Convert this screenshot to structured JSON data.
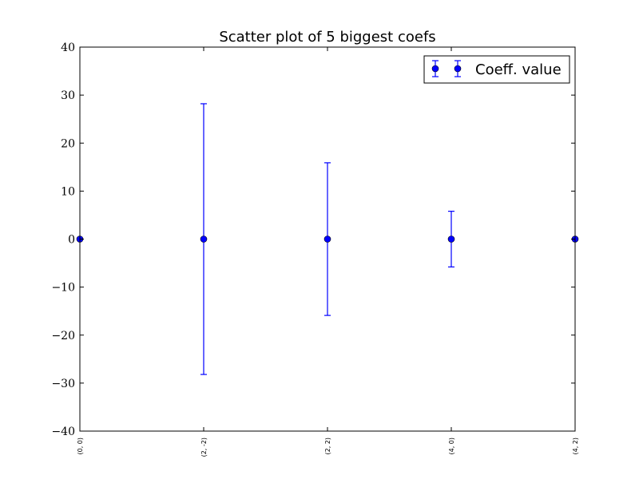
{
  "chart_data": {
    "type": "scatter",
    "title": "Scatter plot of 5 biggest coefs",
    "xlabel": "",
    "ylabel": "",
    "categories": [
      "(0, 0)",
      "(2, -2)",
      "(2, 2)",
      "(4, 0)",
      "(4, 2)"
    ],
    "ylim": [
      -40,
      40
    ],
    "yticks": [
      -40,
      -30,
      -20,
      -10,
      0,
      10,
      20,
      30,
      40
    ],
    "ytick_labels": [
      "−40",
      "−30",
      "−20",
      "−10",
      "0",
      "10",
      "20",
      "30",
      "40"
    ],
    "grid": false,
    "legend": {
      "position": "top-right",
      "entries": [
        "Coeff. value"
      ]
    },
    "series": [
      {
        "name": "Coeff. value",
        "values": [
          0,
          0,
          0,
          0,
          0
        ],
        "errors": [
          0,
          28.2,
          15.9,
          5.8,
          0
        ],
        "color": "#0000ff"
      }
    ]
  }
}
